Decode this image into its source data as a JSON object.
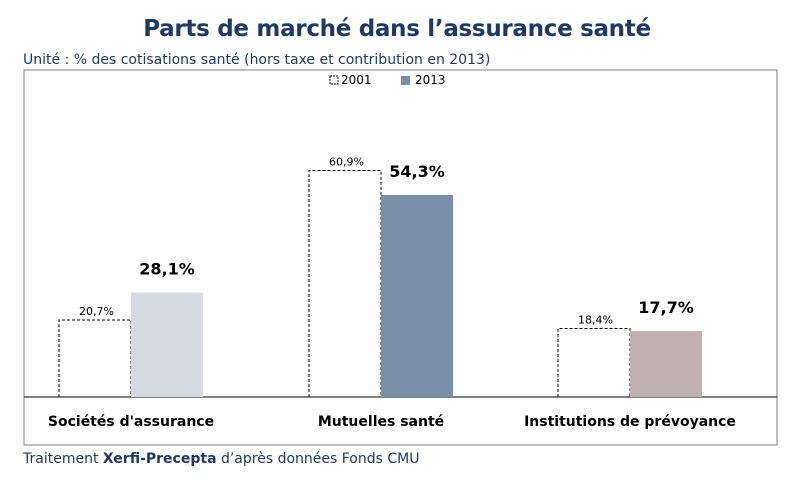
{
  "title": "Parts de marché dans l’assurance santé",
  "subtitle": "Unité : % des cotisations santé (hors taxe et contribution en 2013)",
  "source": {
    "prefix": "Traitement ",
    "brand": "Xerfi-Precepta",
    "suffix": " d’après données Fonds CMU"
  },
  "chart_data": {
    "type": "bar",
    "categories": [
      "Sociétés d'assurance",
      "Mutuelles santé",
      "Institutions de prévoyance"
    ],
    "series": [
      {
        "name": "2001",
        "values": [
          20.7,
          60.9,
          18.4
        ],
        "labels": [
          "20,7%",
          "60,9%",
          "18,4%"
        ],
        "style": "dashed-outline"
      },
      {
        "name": "2013",
        "values": [
          28.1,
          54.3,
          17.7
        ],
        "labels": [
          "28,1%",
          "54,3%",
          "17,7%"
        ],
        "colors": [
          "#d6dbe3",
          "#7b8faa",
          "#c0b0b1"
        ]
      }
    ],
    "ylim": [
      0,
      70
    ],
    "legend": "top-center",
    "grid": false
  }
}
